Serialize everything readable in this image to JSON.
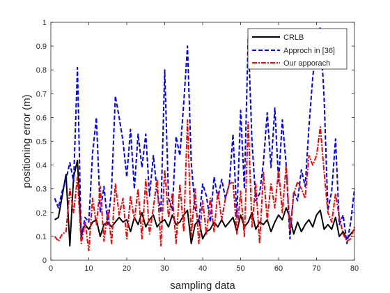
{
  "chart_data": {
    "type": "line",
    "title": "",
    "xlabel": "sampling data",
    "ylabel": "positioning error (m)",
    "xlim": [
      0,
      80
    ],
    "ylim": [
      0,
      1
    ],
    "xticks": [
      0,
      10,
      20,
      30,
      40,
      50,
      60,
      70,
      80
    ],
    "xtick_labels": [
      "0",
      "10",
      "20",
      "30",
      "40",
      "50",
      "60",
      "70",
      "80"
    ],
    "yticks": [
      0,
      0.1,
      0.2,
      0.3,
      0.4,
      0.5,
      0.6,
      0.7,
      0.8,
      0.9,
      1
    ],
    "ytick_labels": [
      "0",
      "0.1",
      "0.2",
      "0.3",
      "0.4",
      "0.5",
      "0.6",
      "0.7",
      "0.8",
      "0.9",
      "1"
    ],
    "grid": false,
    "legend_position": "top-right",
    "x": [
      1,
      2,
      3,
      4,
      5,
      6,
      7,
      8,
      9,
      10,
      11,
      12,
      13,
      14,
      15,
      16,
      17,
      18,
      19,
      20,
      21,
      22,
      23,
      24,
      25,
      26,
      27,
      28,
      29,
      30,
      31,
      32,
      33,
      34,
      35,
      36,
      37,
      38,
      39,
      40,
      41,
      42,
      43,
      44,
      45,
      46,
      47,
      48,
      49,
      50,
      51,
      52,
      53,
      54,
      55,
      56,
      57,
      58,
      59,
      60,
      61,
      62,
      63,
      64,
      65,
      66,
      67,
      68,
      69,
      70,
      71,
      72,
      73,
      74,
      75,
      76,
      77,
      78,
      79,
      80
    ],
    "series": [
      {
        "name": "CRLB",
        "color": "#000000",
        "style": "solid",
        "values": [
          0.17,
          0.18,
          0.27,
          0.36,
          0.06,
          0.35,
          0.42,
          0.11,
          0.15,
          0.13,
          0.16,
          0.17,
          0.1,
          0.15,
          0.16,
          0.14,
          0.16,
          0.18,
          0.16,
          0.17,
          0.12,
          0.18,
          0.15,
          0.2,
          0.14,
          0.17,
          0.19,
          0.14,
          0.16,
          0.17,
          0.14,
          0.19,
          0.15,
          0.16,
          0.19,
          0.21,
          0.07,
          0.15,
          0.17,
          0.09,
          0.12,
          0.13,
          0.16,
          0.14,
          0.17,
          0.14,
          0.16,
          0.18,
          0.12,
          0.19,
          0.14,
          0.16,
          0.2,
          0.13,
          0.16,
          0.15,
          0.17,
          0.12,
          0.16,
          0.19,
          0.17,
          0.22,
          0.18,
          0.11,
          0.16,
          0.12,
          0.15,
          0.17,
          0.14,
          0.19,
          0.21,
          0.13,
          0.15,
          0.13,
          0.18,
          0.1,
          0.12,
          0.09,
          0.11,
          0.13
        ]
      },
      {
        "name": "Approch in [36]",
        "color": "#0000ff",
        "style": "dashed",
        "values": [
          0.26,
          0.22,
          0.29,
          0.34,
          0.41,
          0.33,
          0.81,
          0.09,
          0.18,
          0.16,
          0.45,
          0.6,
          0.2,
          0.31,
          0.15,
          0.3,
          0.69,
          0.6,
          0.5,
          0.35,
          0.55,
          0.3,
          0.53,
          0.39,
          0.53,
          0.27,
          0.44,
          0.29,
          0.2,
          0.8,
          0.26,
          0.21,
          0.52,
          0.44,
          0.66,
          0.9,
          0.41,
          0.22,
          0.16,
          0.32,
          0.27,
          0.16,
          0.35,
          0.26,
          0.34,
          0.26,
          0.32,
          0.53,
          0.18,
          0.63,
          0.3,
          0.94,
          0.5,
          0.25,
          0.28,
          0.41,
          0.62,
          0.39,
          0.64,
          0.33,
          0.59,
          0.4,
          0.09,
          0.29,
          0.25,
          0.38,
          0.31,
          0.56,
          0.77,
          0.91,
          0.98,
          0.68,
          0.21,
          0.29,
          0.51,
          0.15,
          0.19,
          0.07,
          0.16,
          0.3
        ]
      },
      {
        "name": "Our apporach",
        "color": "#ff0000",
        "style": "dashdot",
        "values": [
          0.1,
          0.08,
          0.11,
          0.12,
          0.3,
          0.2,
          0.35,
          0.07,
          0.16,
          0.04,
          0.26,
          0.15,
          0.31,
          0.08,
          0.21,
          0.07,
          0.32,
          0.19,
          0.26,
          0.09,
          0.27,
          0.17,
          0.3,
          0.09,
          0.34,
          0.11,
          0.22,
          0.34,
          0.06,
          0.38,
          0.18,
          0.28,
          0.07,
          0.32,
          0.12,
          0.59,
          0.1,
          0.3,
          0.07,
          0.25,
          0.11,
          0.26,
          0.12,
          0.29,
          0.17,
          0.26,
          0.32,
          0.33,
          0.11,
          0.29,
          0.1,
          0.58,
          0.14,
          0.32,
          0.07,
          0.37,
          0.17,
          0.32,
          0.22,
          0.38,
          0.2,
          0.4,
          0.12,
          0.28,
          0.33,
          0.3,
          0.26,
          0.44,
          0.4,
          0.44,
          0.56,
          0.37,
          0.2,
          0.16,
          0.28,
          0.18,
          0.11,
          0.08,
          0.09,
          0.14
        ]
      }
    ]
  }
}
